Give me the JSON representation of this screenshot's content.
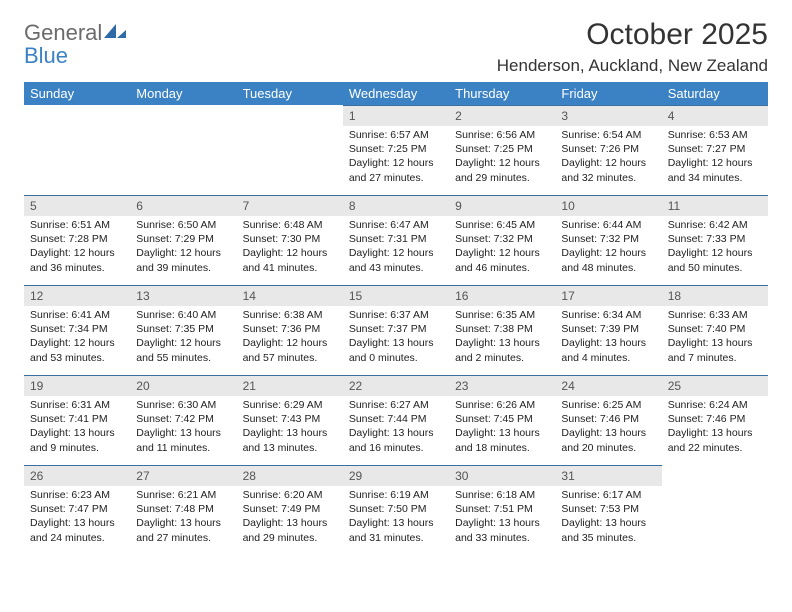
{
  "brand": {
    "word1": "General",
    "word2": "Blue"
  },
  "colors": {
    "header_bg": "#3b82c4",
    "header_text": "#ffffff",
    "daynum_bg": "#e8e8e8",
    "daynum_text": "#555555",
    "body_text": "#222222",
    "rule": "#3b6fa0",
    "page_bg": "#ffffff",
    "logo_gray": "#6b6b6b",
    "logo_blue": "#3b82c4"
  },
  "typography": {
    "month_fontsize": 30,
    "location_fontsize": 17,
    "weekday_fontsize": 13,
    "daynum_fontsize": 12,
    "cell_fontsize": 10.5
  },
  "title": "October 2025",
  "location": "Henderson, Auckland, New Zealand",
  "weekdays": [
    "Sunday",
    "Monday",
    "Tuesday",
    "Wednesday",
    "Thursday",
    "Friday",
    "Saturday"
  ],
  "grid": {
    "weeks": [
      [
        {
          "blank": true
        },
        {
          "blank": true
        },
        {
          "blank": true
        },
        {
          "num": "1",
          "sunrise": "Sunrise: 6:57 AM",
          "sunset": "Sunset: 7:25 PM",
          "dl1": "Daylight: 12 hours",
          "dl2": "and 27 minutes."
        },
        {
          "num": "2",
          "sunrise": "Sunrise: 6:56 AM",
          "sunset": "Sunset: 7:25 PM",
          "dl1": "Daylight: 12 hours",
          "dl2": "and 29 minutes."
        },
        {
          "num": "3",
          "sunrise": "Sunrise: 6:54 AM",
          "sunset": "Sunset: 7:26 PM",
          "dl1": "Daylight: 12 hours",
          "dl2": "and 32 minutes."
        },
        {
          "num": "4",
          "sunrise": "Sunrise: 6:53 AM",
          "sunset": "Sunset: 7:27 PM",
          "dl1": "Daylight: 12 hours",
          "dl2": "and 34 minutes."
        }
      ],
      [
        {
          "num": "5",
          "sunrise": "Sunrise: 6:51 AM",
          "sunset": "Sunset: 7:28 PM",
          "dl1": "Daylight: 12 hours",
          "dl2": "and 36 minutes."
        },
        {
          "num": "6",
          "sunrise": "Sunrise: 6:50 AM",
          "sunset": "Sunset: 7:29 PM",
          "dl1": "Daylight: 12 hours",
          "dl2": "and 39 minutes."
        },
        {
          "num": "7",
          "sunrise": "Sunrise: 6:48 AM",
          "sunset": "Sunset: 7:30 PM",
          "dl1": "Daylight: 12 hours",
          "dl2": "and 41 minutes."
        },
        {
          "num": "8",
          "sunrise": "Sunrise: 6:47 AM",
          "sunset": "Sunset: 7:31 PM",
          "dl1": "Daylight: 12 hours",
          "dl2": "and 43 minutes."
        },
        {
          "num": "9",
          "sunrise": "Sunrise: 6:45 AM",
          "sunset": "Sunset: 7:32 PM",
          "dl1": "Daylight: 12 hours",
          "dl2": "and 46 minutes."
        },
        {
          "num": "10",
          "sunrise": "Sunrise: 6:44 AM",
          "sunset": "Sunset: 7:32 PM",
          "dl1": "Daylight: 12 hours",
          "dl2": "and 48 minutes."
        },
        {
          "num": "11",
          "sunrise": "Sunrise: 6:42 AM",
          "sunset": "Sunset: 7:33 PM",
          "dl1": "Daylight: 12 hours",
          "dl2": "and 50 minutes."
        }
      ],
      [
        {
          "num": "12",
          "sunrise": "Sunrise: 6:41 AM",
          "sunset": "Sunset: 7:34 PM",
          "dl1": "Daylight: 12 hours",
          "dl2": "and 53 minutes."
        },
        {
          "num": "13",
          "sunrise": "Sunrise: 6:40 AM",
          "sunset": "Sunset: 7:35 PM",
          "dl1": "Daylight: 12 hours",
          "dl2": "and 55 minutes."
        },
        {
          "num": "14",
          "sunrise": "Sunrise: 6:38 AM",
          "sunset": "Sunset: 7:36 PM",
          "dl1": "Daylight: 12 hours",
          "dl2": "and 57 minutes."
        },
        {
          "num": "15",
          "sunrise": "Sunrise: 6:37 AM",
          "sunset": "Sunset: 7:37 PM",
          "dl1": "Daylight: 13 hours",
          "dl2": "and 0 minutes."
        },
        {
          "num": "16",
          "sunrise": "Sunrise: 6:35 AM",
          "sunset": "Sunset: 7:38 PM",
          "dl1": "Daylight: 13 hours",
          "dl2": "and 2 minutes."
        },
        {
          "num": "17",
          "sunrise": "Sunrise: 6:34 AM",
          "sunset": "Sunset: 7:39 PM",
          "dl1": "Daylight: 13 hours",
          "dl2": "and 4 minutes."
        },
        {
          "num": "18",
          "sunrise": "Sunrise: 6:33 AM",
          "sunset": "Sunset: 7:40 PM",
          "dl1": "Daylight: 13 hours",
          "dl2": "and 7 minutes."
        }
      ],
      [
        {
          "num": "19",
          "sunrise": "Sunrise: 6:31 AM",
          "sunset": "Sunset: 7:41 PM",
          "dl1": "Daylight: 13 hours",
          "dl2": "and 9 minutes."
        },
        {
          "num": "20",
          "sunrise": "Sunrise: 6:30 AM",
          "sunset": "Sunset: 7:42 PM",
          "dl1": "Daylight: 13 hours",
          "dl2": "and 11 minutes."
        },
        {
          "num": "21",
          "sunrise": "Sunrise: 6:29 AM",
          "sunset": "Sunset: 7:43 PM",
          "dl1": "Daylight: 13 hours",
          "dl2": "and 13 minutes."
        },
        {
          "num": "22",
          "sunrise": "Sunrise: 6:27 AM",
          "sunset": "Sunset: 7:44 PM",
          "dl1": "Daylight: 13 hours",
          "dl2": "and 16 minutes."
        },
        {
          "num": "23",
          "sunrise": "Sunrise: 6:26 AM",
          "sunset": "Sunset: 7:45 PM",
          "dl1": "Daylight: 13 hours",
          "dl2": "and 18 minutes."
        },
        {
          "num": "24",
          "sunrise": "Sunrise: 6:25 AM",
          "sunset": "Sunset: 7:46 PM",
          "dl1": "Daylight: 13 hours",
          "dl2": "and 20 minutes."
        },
        {
          "num": "25",
          "sunrise": "Sunrise: 6:24 AM",
          "sunset": "Sunset: 7:46 PM",
          "dl1": "Daylight: 13 hours",
          "dl2": "and 22 minutes."
        }
      ],
      [
        {
          "num": "26",
          "sunrise": "Sunrise: 6:23 AM",
          "sunset": "Sunset: 7:47 PM",
          "dl1": "Daylight: 13 hours",
          "dl2": "and 24 minutes."
        },
        {
          "num": "27",
          "sunrise": "Sunrise: 6:21 AM",
          "sunset": "Sunset: 7:48 PM",
          "dl1": "Daylight: 13 hours",
          "dl2": "and 27 minutes."
        },
        {
          "num": "28",
          "sunrise": "Sunrise: 6:20 AM",
          "sunset": "Sunset: 7:49 PM",
          "dl1": "Daylight: 13 hours",
          "dl2": "and 29 minutes."
        },
        {
          "num": "29",
          "sunrise": "Sunrise: 6:19 AM",
          "sunset": "Sunset: 7:50 PM",
          "dl1": "Daylight: 13 hours",
          "dl2": "and 31 minutes."
        },
        {
          "num": "30",
          "sunrise": "Sunrise: 6:18 AM",
          "sunset": "Sunset: 7:51 PM",
          "dl1": "Daylight: 13 hours",
          "dl2": "and 33 minutes."
        },
        {
          "num": "31",
          "sunrise": "Sunrise: 6:17 AM",
          "sunset": "Sunset: 7:53 PM",
          "dl1": "Daylight: 13 hours",
          "dl2": "and 35 minutes."
        },
        {
          "blank": true
        }
      ]
    ]
  }
}
